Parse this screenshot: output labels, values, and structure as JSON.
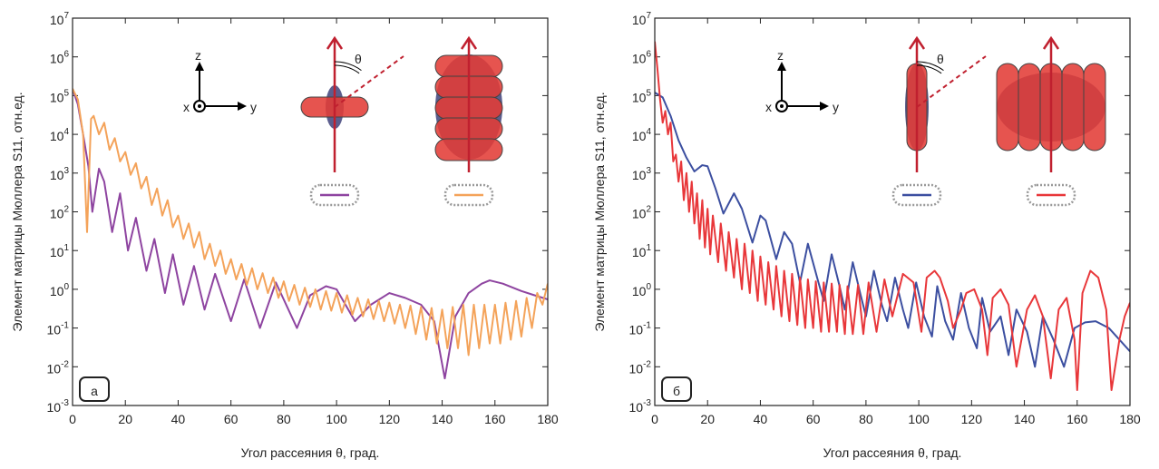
{
  "chart_data": [
    {
      "type": "line",
      "panel_label": "а",
      "xlabel": "Угол рассеяния θ, град.",
      "ylabel": "Элемент матрицы Мюллера S11, отн.ед.",
      "inset_axis_labels": [
        "x",
        "y",
        "z"
      ],
      "angle_label": "θ",
      "log_scale": true,
      "grid": false,
      "xlim": [
        0,
        180
      ],
      "xticks": [
        0,
        20,
        40,
        60,
        80,
        100,
        120,
        140,
        160,
        180
      ],
      "ylim": [
        0.001,
        10000000
      ],
      "yticks": [
        {
          "value": 0.001,
          "label": "10^-3"
        },
        {
          "value": 0.01,
          "label": "10^-2"
        },
        {
          "value": 0.1,
          "label": "10^-1"
        },
        {
          "value": 1,
          "label": "10^0"
        },
        {
          "value": 10,
          "label": "10^1"
        },
        {
          "value": 100,
          "label": "10^2"
        },
        {
          "value": 1000,
          "label": "10^3"
        },
        {
          "value": 10000,
          "label": "10^4"
        },
        {
          "value": 100000,
          "label": "10^5"
        },
        {
          "value": 1000000,
          "label": "10^6"
        },
        {
          "value": 10000000,
          "label": "10^7"
        }
      ],
      "series": [
        {
          "color": "#8e44a0",
          "x": [
            0,
            2,
            4,
            6,
            7.5,
            10,
            12,
            15,
            18,
            21,
            24,
            28,
            31,
            35,
            38,
            42,
            46,
            50,
            54,
            60,
            65,
            71,
            77,
            85,
            90,
            96,
            100,
            107,
            113,
            120,
            126,
            132,
            137,
            141,
            145,
            150,
            155,
            158,
            163,
            170,
            175,
            180
          ],
          "values": [
            150000.0,
            60000.0,
            10000.0,
            1500.0,
            100.0,
            1300.0,
            600.0,
            30.0,
            300.0,
            10.0,
            70.0,
            3,
            20.0,
            0.8,
            8,
            0.4,
            4,
            0.3,
            2.5,
            0.15,
            1.8,
            0.1,
            1.5,
            0.1,
            0.7,
            1.2,
            1,
            0.15,
            0.4,
            0.8,
            0.6,
            0.4,
            0.15,
            0.005,
            0.2,
            0.8,
            1.4,
            1.7,
            1.4,
            0.9,
            0.7,
            0.55
          ]
        },
        {
          "color": "#f4a35a",
          "x": [
            0,
            2,
            4,
            5.5,
            7,
            8,
            10,
            12,
            14,
            16,
            18,
            20,
            22,
            24,
            26,
            28,
            30,
            32,
            34,
            36,
            38,
            40,
            42,
            44,
            46,
            48,
            50,
            52,
            54,
            56,
            58,
            60,
            62,
            64,
            66,
            68,
            70,
            72,
            74,
            76,
            78,
            80,
            82,
            84,
            86,
            88,
            90,
            92,
            94,
            96,
            98,
            100,
            102,
            104,
            106,
            108,
            110,
            112,
            114,
            116,
            118,
            120,
            122,
            124,
            126,
            128,
            130,
            132,
            134,
            136,
            138,
            140,
            142,
            144,
            146,
            148,
            150,
            152,
            154,
            156,
            158,
            160,
            162,
            164,
            166,
            168,
            170,
            172,
            174,
            176,
            178,
            180
          ],
          "values": [
            150000.0,
            80000.0,
            10000.0,
            30.0,
            25000.0,
            30000.0,
            10000.0,
            20000.0,
            4000.0,
            8000.0,
            2000.0,
            3500.0,
            900.0,
            1800.0,
            400.0,
            800.0,
            150.0,
            400.0,
            80.0,
            200.0,
            40.0,
            80.0,
            20.0,
            50.0,
            12.0,
            30.0,
            6,
            15.0,
            4,
            10.0,
            2.5,
            6,
            1.8,
            4.5,
            1.3,
            3.5,
            1,
            2.6,
            0.8,
            2,
            0.6,
            1.6,
            0.5,
            1.3,
            0.4,
            1.1,
            0.35,
            1,
            0.3,
            0.9,
            0.28,
            0.8,
            0.25,
            0.7,
            0.22,
            0.6,
            0.2,
            0.55,
            0.17,
            0.5,
            0.15,
            0.45,
            0.13,
            0.4,
            0.1,
            0.38,
            0.07,
            0.35,
            0.05,
            0.33,
            0.04,
            0.3,
            0.03,
            0.35,
            0.03,
            0.4,
            0.02,
            0.4,
            0.03,
            0.4,
            0.04,
            0.4,
            0.04,
            0.45,
            0.05,
            0.5,
            0.06,
            0.6,
            0.1,
            0.8,
            0.4,
            1.4
          ]
        }
      ]
    },
    {
      "type": "line",
      "panel_label": "б",
      "xlabel": "Угол рассеяния θ, град.",
      "ylabel": "Элемент матрицы Мюллера S11, отн.ед.",
      "inset_axis_labels": [
        "x",
        "y",
        "z"
      ],
      "angle_label": "θ",
      "log_scale": true,
      "grid": false,
      "xlim": [
        0,
        180
      ],
      "xticks": [
        0,
        20,
        40,
        60,
        80,
        100,
        120,
        140,
        160,
        180
      ],
      "ylim": [
        0.001,
        10000000
      ],
      "yticks": [
        {
          "value": 0.001,
          "label": "10^-3"
        },
        {
          "value": 0.01,
          "label": "10^-2"
        },
        {
          "value": 0.1,
          "label": "10^-1"
        },
        {
          "value": 1,
          "label": "10^0"
        },
        {
          "value": 10,
          "label": "10^1"
        },
        {
          "value": 100,
          "label": "10^2"
        },
        {
          "value": 1000,
          "label": "10^3"
        },
        {
          "value": 10000,
          "label": "10^4"
        },
        {
          "value": 100000,
          "label": "10^5"
        },
        {
          "value": 1000000,
          "label": "10^6"
        },
        {
          "value": 10000000,
          "label": "10^7"
        }
      ],
      "series": [
        {
          "color": "#3c4fa0",
          "x": [
            0,
            3,
            6,
            9,
            12,
            15,
            18,
            20,
            23,
            26,
            30,
            33,
            37,
            40,
            42,
            46,
            49,
            52,
            55,
            58,
            62,
            64,
            67,
            70,
            72,
            75,
            78,
            80,
            83,
            86,
            88,
            91,
            94,
            96,
            99,
            102,
            105,
            107,
            110,
            113,
            116,
            119,
            122,
            124,
            127,
            131,
            134,
            137,
            141,
            144,
            147,
            151,
            155,
            159,
            163,
            167,
            172,
            176,
            180
          ],
          "values": [
            120000.0,
            90000.0,
            30000.0,
            7000.0,
            2500.0,
            1100.0,
            1600.0,
            1500.0,
            400.0,
            90.0,
            300.0,
            120.0,
            16.0,
            80.0,
            60.0,
            6,
            30.0,
            15.0,
            1.5,
            15.0,
            1.5,
            0.5,
            8,
            1.2,
            0.3,
            5,
            0.7,
            0.2,
            3,
            0.4,
            0.15,
            2,
            0.3,
            0.1,
            1.5,
            0.2,
            0.06,
            1.2,
            0.15,
            0.05,
            0.8,
            0.1,
            0.03,
            0.6,
            0.08,
            0.2,
            0.02,
            0.3,
            0.08,
            0.01,
            0.2,
            0.05,
            0.01,
            0.1,
            0.14,
            0.15,
            0.1,
            0.05,
            0.025
          ]
        },
        {
          "color": "#e8373a",
          "x": [
            0,
            1,
            2,
            3,
            4,
            5,
            6,
            7,
            8,
            9,
            10,
            11,
            12,
            13,
            14,
            15,
            16,
            17,
            18,
            19,
            20,
            21,
            22,
            24,
            25,
            27,
            28,
            30,
            31,
            33,
            34,
            36,
            37,
            39,
            40,
            42,
            43,
            45,
            46,
            48,
            49,
            51,
            52,
            54,
            55,
            57,
            58,
            60,
            61,
            63,
            64,
            66,
            67,
            69,
            70,
            72,
            73,
            75,
            77,
            79,
            81,
            84,
            87,
            90,
            94,
            98,
            101,
            103,
            106,
            108,
            111,
            113,
            116,
            118,
            121,
            124,
            126,
            128,
            131,
            134,
            137,
            141,
            144,
            147,
            150,
            153,
            156,
            159,
            160,
            162,
            165,
            168,
            171,
            173,
            176,
            178,
            180
          ],
          "values": [
            2500000.0,
            500000.0,
            80000.0,
            20000.0,
            40000.0,
            10000.0,
            20000.0,
            2000.0,
            3000.0,
            600.0,
            2000.0,
            200.0,
            1000.0,
            100.0,
            600.0,
            50.0,
            300.0,
            20.0,
            200.0,
            12.0,
            120.0,
            8,
            80.0,
            5,
            50.0,
            3,
            30.0,
            2,
            20.0,
            1,
            15.0,
            0.8,
            10.0,
            0.5,
            7,
            0.4,
            5,
            0.3,
            4,
            0.2,
            3,
            0.15,
            2.5,
            0.12,
            2,
            0.1,
            1.8,
            0.1,
            1.6,
            0.08,
            1.5,
            0.08,
            1.4,
            0.08,
            1.3,
            0.07,
            1.2,
            0.07,
            1.3,
            0.07,
            1.5,
            0.08,
            1.8,
            0.2,
            2.5,
            1.5,
            0.08,
            2,
            3,
            2,
            0.5,
            0.1,
            0.3,
            0.8,
            1,
            0.3,
            0.02,
            0.6,
            1,
            0.4,
            0.01,
            0.3,
            0.7,
            0.2,
            0.005,
            0.3,
            0.6,
            0.05,
            0.0025,
            0.8,
            3,
            2,
            0.3,
            0.0025,
            0.05,
            0.2,
            0.45
          ]
        }
      ]
    }
  ]
}
